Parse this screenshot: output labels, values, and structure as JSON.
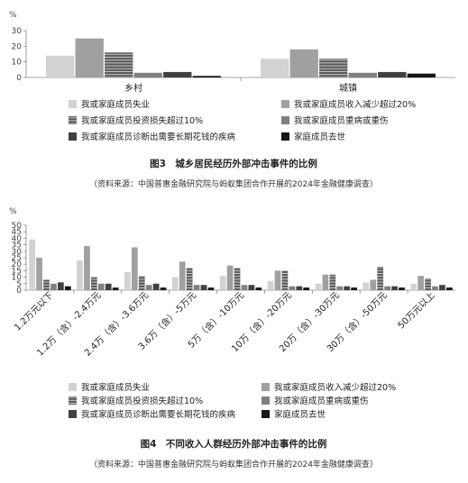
{
  "colors": {
    "job_loss": "#d2d2d2",
    "income_drop": "#a0a0a0",
    "invest_loss": "#5a5a5a",
    "illness": "#808080",
    "long_term_illness": "#404040",
    "death": "#161616",
    "axis": "#888888"
  },
  "legend": [
    {
      "key": "job_loss",
      "label": "我或家庭成员失业",
      "pattern": "solid"
    },
    {
      "key": "income_drop",
      "label": "我或家庭成员收入减少超过20%",
      "pattern": "solid"
    },
    {
      "key": "invest_loss",
      "label": "我或家庭成员投资损失超过10%",
      "pattern": "striped"
    },
    {
      "key": "illness",
      "label": "我或家庭成员重病或重伤",
      "pattern": "solid"
    },
    {
      "key": "long_term_illness",
      "label": "我或家庭成员诊断出需要长期花钱的疾病",
      "pattern": "solid"
    },
    {
      "key": "death",
      "label": "家庭成员去世",
      "pattern": "solid"
    }
  ],
  "chart_data": [
    {
      "type": "bar",
      "title": "图3　城乡居民经历外部冲击事件的比例",
      "source": "（资料来源：中国普惠金融研究院与蚂蚁集团合作开展的2024年金融健康调查）",
      "ylabel": "%",
      "ylim": [
        0,
        30
      ],
      "yticks": [
        0,
        10,
        20,
        30
      ],
      "categories": [
        "乡村",
        "城镇"
      ],
      "series": [
        {
          "key": "job_loss",
          "name": "我或家庭成员失业",
          "values": [
            14,
            12
          ]
        },
        {
          "key": "income_drop",
          "name": "我或家庭成员收入减少超过20%",
          "values": [
            25,
            18
          ]
        },
        {
          "key": "invest_loss",
          "name": "我或家庭成员投资损失超过10%",
          "values": [
            16,
            12
          ]
        },
        {
          "key": "illness",
          "name": "我或家庭成员重病或重伤",
          "values": [
            3,
            3
          ]
        },
        {
          "key": "long_term_illness",
          "name": "我或家庭成员诊断出需要长期花钱的疾病",
          "values": [
            3.5,
            3.5
          ]
        },
        {
          "key": "death",
          "name": "家庭成员去世",
          "values": [
            1,
            2.5
          ]
        }
      ]
    },
    {
      "type": "bar",
      "title": "图4　不同收入人群经历外部冲击事件的比例",
      "source": "（资料来源：中国普惠金融研究院与蚂蚁集团合作开展的2024年金融健康调查）",
      "ylabel": "%",
      "ylim": [
        0,
        50
      ],
      "yticks": [
        0,
        5,
        10,
        15,
        20,
        25,
        30,
        35,
        40,
        45,
        50
      ],
      "categories": [
        "1.2万元以下",
        "1.2万（含）-2.4万元",
        "2.4万（含）-3.6万元",
        "3.6万（含）-5万元",
        "5万（含）-10万元",
        "10万（含）-20万元",
        "20万（含）-30万元",
        "30万（含）-50万元",
        "50万元以上"
      ],
      "series": [
        {
          "key": "job_loss",
          "name": "我或家庭成员失业",
          "values": [
            39,
            23,
            14,
            10,
            11,
            7,
            5,
            6,
            5
          ]
        },
        {
          "key": "income_drop",
          "name": "我或家庭成员收入减少超过20%",
          "values": [
            25,
            34,
            33,
            22,
            19,
            15,
            12,
            8,
            11
          ]
        },
        {
          "key": "invest_loss",
          "name": "我或家庭成员投资损失超过10%",
          "values": [
            8,
            10,
            11,
            17,
            17,
            15,
            12,
            18,
            9
          ]
        },
        {
          "key": "illness",
          "name": "我或家庭成员重病或重伤",
          "values": [
            5,
            5,
            4,
            4,
            4,
            3,
            3,
            3,
            3
          ]
        },
        {
          "key": "long_term_illness",
          "name": "我或家庭成员诊断出需要长期花钱的疾病",
          "values": [
            6,
            5,
            5,
            4,
            4,
            3,
            3,
            3,
            4
          ]
        },
        {
          "key": "death",
          "name": "家庭成员去世",
          "values": [
            3,
            2,
            2,
            2,
            2,
            2,
            2,
            2,
            2
          ]
        }
      ]
    }
  ]
}
